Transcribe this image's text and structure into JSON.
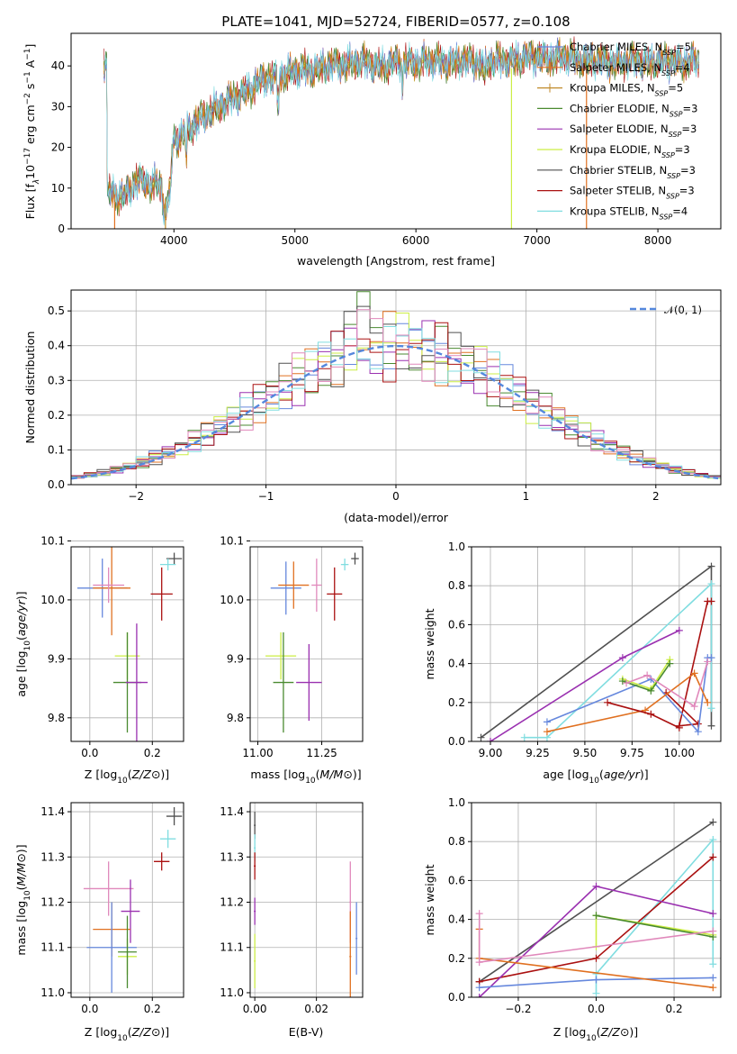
{
  "figure_title": "PLATE=1041, MJD=52724, FIBERID=0577, z=0.108",
  "colors": {
    "Chabrier MILES": "#6688dd",
    "Salpeter MILES": "#e07020",
    "Kroupa MILES": "#c08a2a",
    "Chabrier ELODIE": "#4a8a30",
    "Salpeter ELODIE": "#9a30b0",
    "Kroupa ELODIE": "#ccee44",
    "Chabrier STELIB": "#505050",
    "Salpeter STELIB": "#aa1010",
    "Kroupa STELIB": "#80dde0",
    "Extra pink": "#e088bb",
    "Normal curve": "#5588dd"
  },
  "chart_data": [
    {
      "id": "spectrum",
      "type": "line",
      "xlabel": "wavelength [Angstrom, rest frame]",
      "ylabel_parts": [
        "Flux [f",
        "λ",
        "10",
        "−17",
        " erg cm",
        "−2",
        " s",
        "−1",
        " A",
        "−1",
        "]"
      ],
      "xlim": [
        3150,
        8520
      ],
      "ylim": [
        0,
        48
      ],
      "xticks": [
        4000,
        5000,
        6000,
        7000,
        8000
      ],
      "yticks": [
        0,
        10,
        20,
        30,
        40
      ],
      "grid": false,
      "legend_position": "upper right",
      "series": [
        {
          "name": "Chabrier MILES",
          "sub": "SSP",
          "count": "5"
        },
        {
          "name": "Salpeter MILES",
          "sub": "SSP",
          "count": "4"
        },
        {
          "name": "Kroupa MILES",
          "sub": "SSP",
          "count": "5"
        },
        {
          "name": "Chabrier ELODIE",
          "sub": "SSP",
          "count": "3"
        },
        {
          "name": "Salpeter ELODIE",
          "sub": "SSP",
          "count": "3"
        },
        {
          "name": "Kroupa ELODIE",
          "sub": "SSP",
          "count": "3"
        },
        {
          "name": "Chabrier STELIB",
          "sub": "SSP",
          "count": "3"
        },
        {
          "name": "Salpeter STELIB",
          "sub": "SSP",
          "count": "3"
        },
        {
          "name": "Kroupa STELIB",
          "sub": "SSP",
          "count": "4"
        }
      ],
      "continuum": {
        "x": [
          3450,
          3600,
          3700,
          3850,
          3950,
          4000,
          4150,
          4300,
          4500,
          4700,
          4900,
          5100,
          5300,
          5500,
          5700,
          5900,
          6100,
          6300,
          6500,
          6700,
          6900,
          7100,
          7300,
          7500,
          7800,
          8100,
          8350
        ],
        "y": [
          9,
          8,
          12,
          11,
          9,
          22,
          25,
          29,
          32,
          36,
          38,
          39,
          40,
          41,
          40,
          41,
          41,
          41,
          41,
          41,
          42,
          42,
          42,
          41,
          41,
          41,
          41
        ]
      },
      "spikes": [
        {
          "series": "Salpeter MILES",
          "x": 3510
        },
        {
          "series": "Kroupa MILES",
          "x": 3930
        },
        {
          "series": "Kroupa ELODIE",
          "x": 6790
        },
        {
          "series": "Salpeter MILES",
          "x": 7410
        }
      ]
    },
    {
      "id": "residuals",
      "type": "step-histogram",
      "xlabel": "(data-model)/error",
      "ylabel": "Normed distribution",
      "xlim": [
        -2.5,
        2.5
      ],
      "ylim": [
        0,
        0.56
      ],
      "xticks": [
        -2,
        -1,
        0,
        1,
        2
      ],
      "yticks": [
        0.0,
        0.1,
        0.2,
        0.3,
        0.4,
        0.5
      ],
      "grid": true,
      "bin_width": 0.1,
      "legend_position": "upper right",
      "legend": "𝒩(0, 1)"
    },
    {
      "id": "age-vs-Z",
      "type": "errorbar",
      "xlabel": "Z [log10(Z/Z⊙)]",
      "ylabel": "age  [log10(age/yr)]",
      "xlim": [
        -0.06,
        0.3
      ],
      "ylim": [
        9.76,
        10.09
      ],
      "xticks": [
        0.0,
        0.2
      ],
      "yticks": [
        9.8,
        9.9,
        10.0,
        10.1
      ],
      "grid": true,
      "points": [
        {
          "series": "Chabrier STELIB",
          "x": 0.27,
          "y": 10.07,
          "xerr": 0.025,
          "yerr": 0.01
        },
        {
          "series": "Kroupa STELIB",
          "x": 0.25,
          "y": 10.06,
          "xerr": 0.025,
          "yerr": 0.01
        },
        {
          "series": "Salpeter STELIB",
          "x": 0.23,
          "y": 10.01,
          "xerr": 0.035,
          "yerr": 0.045
        },
        {
          "series": "Chabrier MILES",
          "x": 0.04,
          "y": 10.02,
          "xerr": 0.08,
          "yerr": 0.05
        },
        {
          "series": "Salpeter MILES",
          "x": 0.07,
          "y": 10.02,
          "xerr": 0.06,
          "yerr": 0.08
        },
        {
          "series": "Extra pink",
          "x": 0.06,
          "y": 10.025,
          "xerr": 0.05,
          "yerr": 0.03
        },
        {
          "series": "Kroupa ELODIE",
          "x": 0.12,
          "y": 9.905,
          "xerr": 0.04,
          "yerr": 0.04
        },
        {
          "series": "Chabrier ELODIE",
          "x": 0.12,
          "y": 9.86,
          "xerr": 0.045,
          "yerr": 0.085
        },
        {
          "series": "Salpeter ELODIE",
          "x": 0.15,
          "y": 9.86,
          "xerr": 0.035,
          "yerr": 0.1
        }
      ]
    },
    {
      "id": "age-vs-mass",
      "type": "errorbar",
      "xlabel": "mass [log10(M/M⊙)]",
      "ylabel": "",
      "xlim": [
        10.97,
        11.41
      ],
      "ylim": [
        9.76,
        10.09
      ],
      "xticks": [
        11.0,
        11.25
      ],
      "yticks": [
        9.8,
        9.9,
        10.0,
        10.1
      ],
      "grid": true,
      "points": [
        {
          "series": "Chabrier STELIB",
          "x": 11.38,
          "y": 10.07,
          "xerr": 0.015,
          "yerr": 0.01
        },
        {
          "series": "Kroupa STELIB",
          "x": 11.34,
          "y": 10.06,
          "xerr": 0.015,
          "yerr": 0.01
        },
        {
          "series": "Salpeter STELIB",
          "x": 11.3,
          "y": 10.01,
          "xerr": 0.03,
          "yerr": 0.045
        },
        {
          "series": "Extra pink",
          "x": 11.23,
          "y": 10.025,
          "xerr": 0.02,
          "yerr": 0.045
        },
        {
          "series": "Chabrier MILES",
          "x": 11.11,
          "y": 10.02,
          "xerr": 0.06,
          "yerr": 0.045
        },
        {
          "series": "Salpeter MILES",
          "x": 11.14,
          "y": 10.025,
          "xerr": 0.06,
          "yerr": 0.04
        },
        {
          "series": "Kroupa ELODIE",
          "x": 11.09,
          "y": 9.905,
          "xerr": 0.06,
          "yerr": 0.04
        },
        {
          "series": "Chabrier ELODIE",
          "x": 11.1,
          "y": 9.86,
          "xerr": 0.04,
          "yerr": 0.085
        },
        {
          "series": "Salpeter ELODIE",
          "x": 11.2,
          "y": 9.86,
          "xerr": 0.05,
          "yerr": 0.065
        }
      ]
    },
    {
      "id": "weight-vs-age",
      "type": "line-markers",
      "xlabel": "age  [log10(age/yr)]",
      "ylabel": "mass weight",
      "xlim": [
        8.9,
        10.22
      ],
      "ylim": [
        0,
        1
      ],
      "xticks": [
        9.0,
        9.25,
        9.5,
        9.75,
        10.0
      ],
      "yticks": [
        0.0,
        0.2,
        0.4,
        0.6,
        0.8,
        1.0
      ],
      "grid": true,
      "series": [
        {
          "name": "Chabrier STELIB",
          "x": [
            8.95,
            10.17,
            10.17
          ],
          "y": [
            0.02,
            0.9,
            0.08
          ]
        },
        {
          "name": "Kroupa STELIB",
          "x": [
            9.18,
            9.3,
            10.17,
            10.17
          ],
          "y": [
            0.02,
            0.02,
            0.81,
            0.17
          ]
        },
        {
          "name": "Salpeter STELIB",
          "x": [
            9.93,
            10.1,
            10.0,
            10.15,
            10.17
          ],
          "y": [
            0.25,
            0.09,
            0.08,
            0.72,
            0.72
          ]
        },
        {
          "name": "Salpeter ELODIE",
          "x": [
            9.0,
            9.7,
            10.0
          ],
          "y": [
            0.0,
            0.43,
            0.57
          ]
        },
        {
          "name": "Chabrier MILES",
          "x": [
            9.3,
            9.85,
            10.1,
            10.15,
            10.17
          ],
          "y": [
            0.1,
            0.32,
            0.05,
            0.43,
            0.43
          ]
        },
        {
          "name": "Salpeter MILES",
          "x": [
            9.3,
            9.82,
            10.08,
            10.15
          ],
          "y": [
            0.05,
            0.16,
            0.35,
            0.2
          ]
        },
        {
          "name": "Salpeter ELODIE B",
          "color_of": "Salpeter STELIB",
          "x": [
            9.62,
            9.85,
            10.0
          ],
          "y": [
            0.2,
            0.14,
            0.07
          ]
        },
        {
          "name": "Kroupa ELODIE",
          "x": [
            9.7,
            9.85,
            9.95
          ],
          "y": [
            0.32,
            0.27,
            0.42
          ]
        },
        {
          "name": "Chabrier ELODIE",
          "x": [
            9.7,
            9.85,
            9.95
          ],
          "y": [
            0.31,
            0.26,
            0.4
          ]
        },
        {
          "name": "Extra pink",
          "x": [
            9.72,
            9.83,
            10.08,
            10.15
          ],
          "y": [
            0.3,
            0.34,
            0.18,
            0.41
          ]
        }
      ]
    },
    {
      "id": "mass-vs-Z",
      "type": "errorbar",
      "xlabel": "Z [log10(Z/Z⊙)]",
      "ylabel": "mass [log10(M/M⊙)]",
      "xlim": [
        -0.06,
        0.3
      ],
      "ylim": [
        10.99,
        11.42
      ],
      "xticks": [
        0.0,
        0.2
      ],
      "yticks": [
        11.0,
        11.1,
        11.2,
        11.3,
        11.4
      ],
      "grid": true,
      "points": [
        {
          "series": "Chabrier STELIB",
          "x": 0.27,
          "y": 11.39,
          "xerr": 0.025,
          "yerr": 0.02
        },
        {
          "series": "Kroupa STELIB",
          "x": 0.25,
          "y": 11.34,
          "xerr": 0.025,
          "yerr": 0.02
        },
        {
          "series": "Salpeter STELIB",
          "x": 0.23,
          "y": 11.29,
          "xerr": 0.025,
          "yerr": 0.02
        },
        {
          "series": "Extra pink",
          "x": 0.06,
          "y": 11.23,
          "xerr": 0.08,
          "yerr": 0.06
        },
        {
          "series": "Salpeter ELODIE",
          "x": 0.13,
          "y": 11.18,
          "xerr": 0.03,
          "yerr": 0.07
        },
        {
          "series": "Salpeter MILES",
          "x": 0.07,
          "y": 11.14,
          "xerr": 0.06,
          "yerr": 0.06
        },
        {
          "series": "Chabrier MILES",
          "x": 0.07,
          "y": 11.1,
          "xerr": 0.08,
          "yerr": 0.1
        },
        {
          "series": "Kroupa ELODIE",
          "x": 0.12,
          "y": 11.08,
          "xerr": 0.03,
          "yerr": 0.04
        },
        {
          "series": "Chabrier ELODIE",
          "x": 0.12,
          "y": 11.09,
          "xerr": 0.03,
          "yerr": 0.08
        }
      ]
    },
    {
      "id": "mass-vs-EBV",
      "type": "errorbar",
      "xlabel": "E(B-V)",
      "ylabel": "",
      "xlim": [
        -0.0015,
        0.035
      ],
      "ylim": [
        10.99,
        11.42
      ],
      "xticks": [
        0.0,
        0.02
      ],
      "yticks": [
        11.0,
        11.1,
        11.2,
        11.3,
        11.4
      ],
      "grid": true,
      "points": [
        {
          "series": "Chabrier STELIB",
          "x": 0.0,
          "y": 11.37,
          "xerr": 0.0003,
          "yerr": 0.03
        },
        {
          "series": "Kroupa STELIB",
          "x": 0.0,
          "y": 11.32,
          "xerr": 0.0003,
          "yerr": 0.03
        },
        {
          "series": "Salpeter STELIB",
          "x": 0.0,
          "y": 11.28,
          "xerr": 0.0003,
          "yerr": 0.03
        },
        {
          "series": "Salpeter ELODIE",
          "x": 0.0,
          "y": 11.18,
          "xerr": 0.0003,
          "yerr": 0.03
        },
        {
          "series": "Kroupa ELODIE",
          "x": 0.0,
          "y": 11.07,
          "xerr": 0.0003,
          "yerr": 0.06
        },
        {
          "series": "Extra pink",
          "x": 0.031,
          "y": 11.2,
          "xerr": 0.0003,
          "yerr": 0.09
        },
        {
          "series": "Salpeter MILES",
          "x": 0.031,
          "y": 11.08,
          "xerr": 0.0003,
          "yerr": 0.1
        },
        {
          "series": "Chabrier MILES",
          "x": 0.033,
          "y": 11.12,
          "xerr": 0.0003,
          "yerr": 0.08
        }
      ]
    },
    {
      "id": "weight-vs-Z",
      "type": "line-markers",
      "xlabel": "Z [log10(Z/Z⊙)]",
      "ylabel": "mass weight",
      "xlim": [
        -0.32,
        0.32
      ],
      "ylim": [
        0,
        1
      ],
      "xticks": [
        -0.2,
        0.0,
        0.2
      ],
      "yticks": [
        0.0,
        0.2,
        0.4,
        0.6,
        0.8,
        1.0
      ],
      "grid": true,
      "series": [
        {
          "name": "Chabrier STELIB",
          "x": [
            -0.3,
            0.3
          ],
          "y": [
            0.08,
            0.9
          ]
        },
        {
          "name": "Kroupa STELIB",
          "x": [
            0.0,
            0.0,
            0.3,
            0.3
          ],
          "y": [
            0.02,
            0.12,
            0.81,
            0.17
          ]
        },
        {
          "name": "Salpeter STELIB",
          "x": [
            -0.3,
            0.0,
            0.3
          ],
          "y": [
            0.08,
            0.2,
            0.72
          ]
        },
        {
          "name": "Salpeter ELODIE",
          "x": [
            -0.3,
            0.0,
            0.3
          ],
          "y": [
            0.0,
            0.57,
            0.43
          ]
        },
        {
          "name": "Chabrier MILES",
          "x": [
            -0.3,
            0.0,
            0.3
          ],
          "y": [
            0.05,
            0.09,
            0.1
          ]
        },
        {
          "name": "Salpeter MILES",
          "x": [
            -0.3,
            -0.3,
            0.3
          ],
          "y": [
            0.35,
            0.2,
            0.05
          ]
        },
        {
          "name": "Kroupa ELODIE",
          "x": [
            0.0,
            0.0,
            0.3
          ],
          "y": [
            0.26,
            0.42,
            0.32
          ]
        },
        {
          "name": "Chabrier ELODIE",
          "x": [
            0.0,
            0.3
          ],
          "y": [
            0.42,
            0.31
          ]
        },
        {
          "name": "Extra pink",
          "x": [
            -0.3,
            -0.3,
            0.3
          ],
          "y": [
            0.43,
            0.18,
            0.34
          ]
        }
      ]
    }
  ]
}
